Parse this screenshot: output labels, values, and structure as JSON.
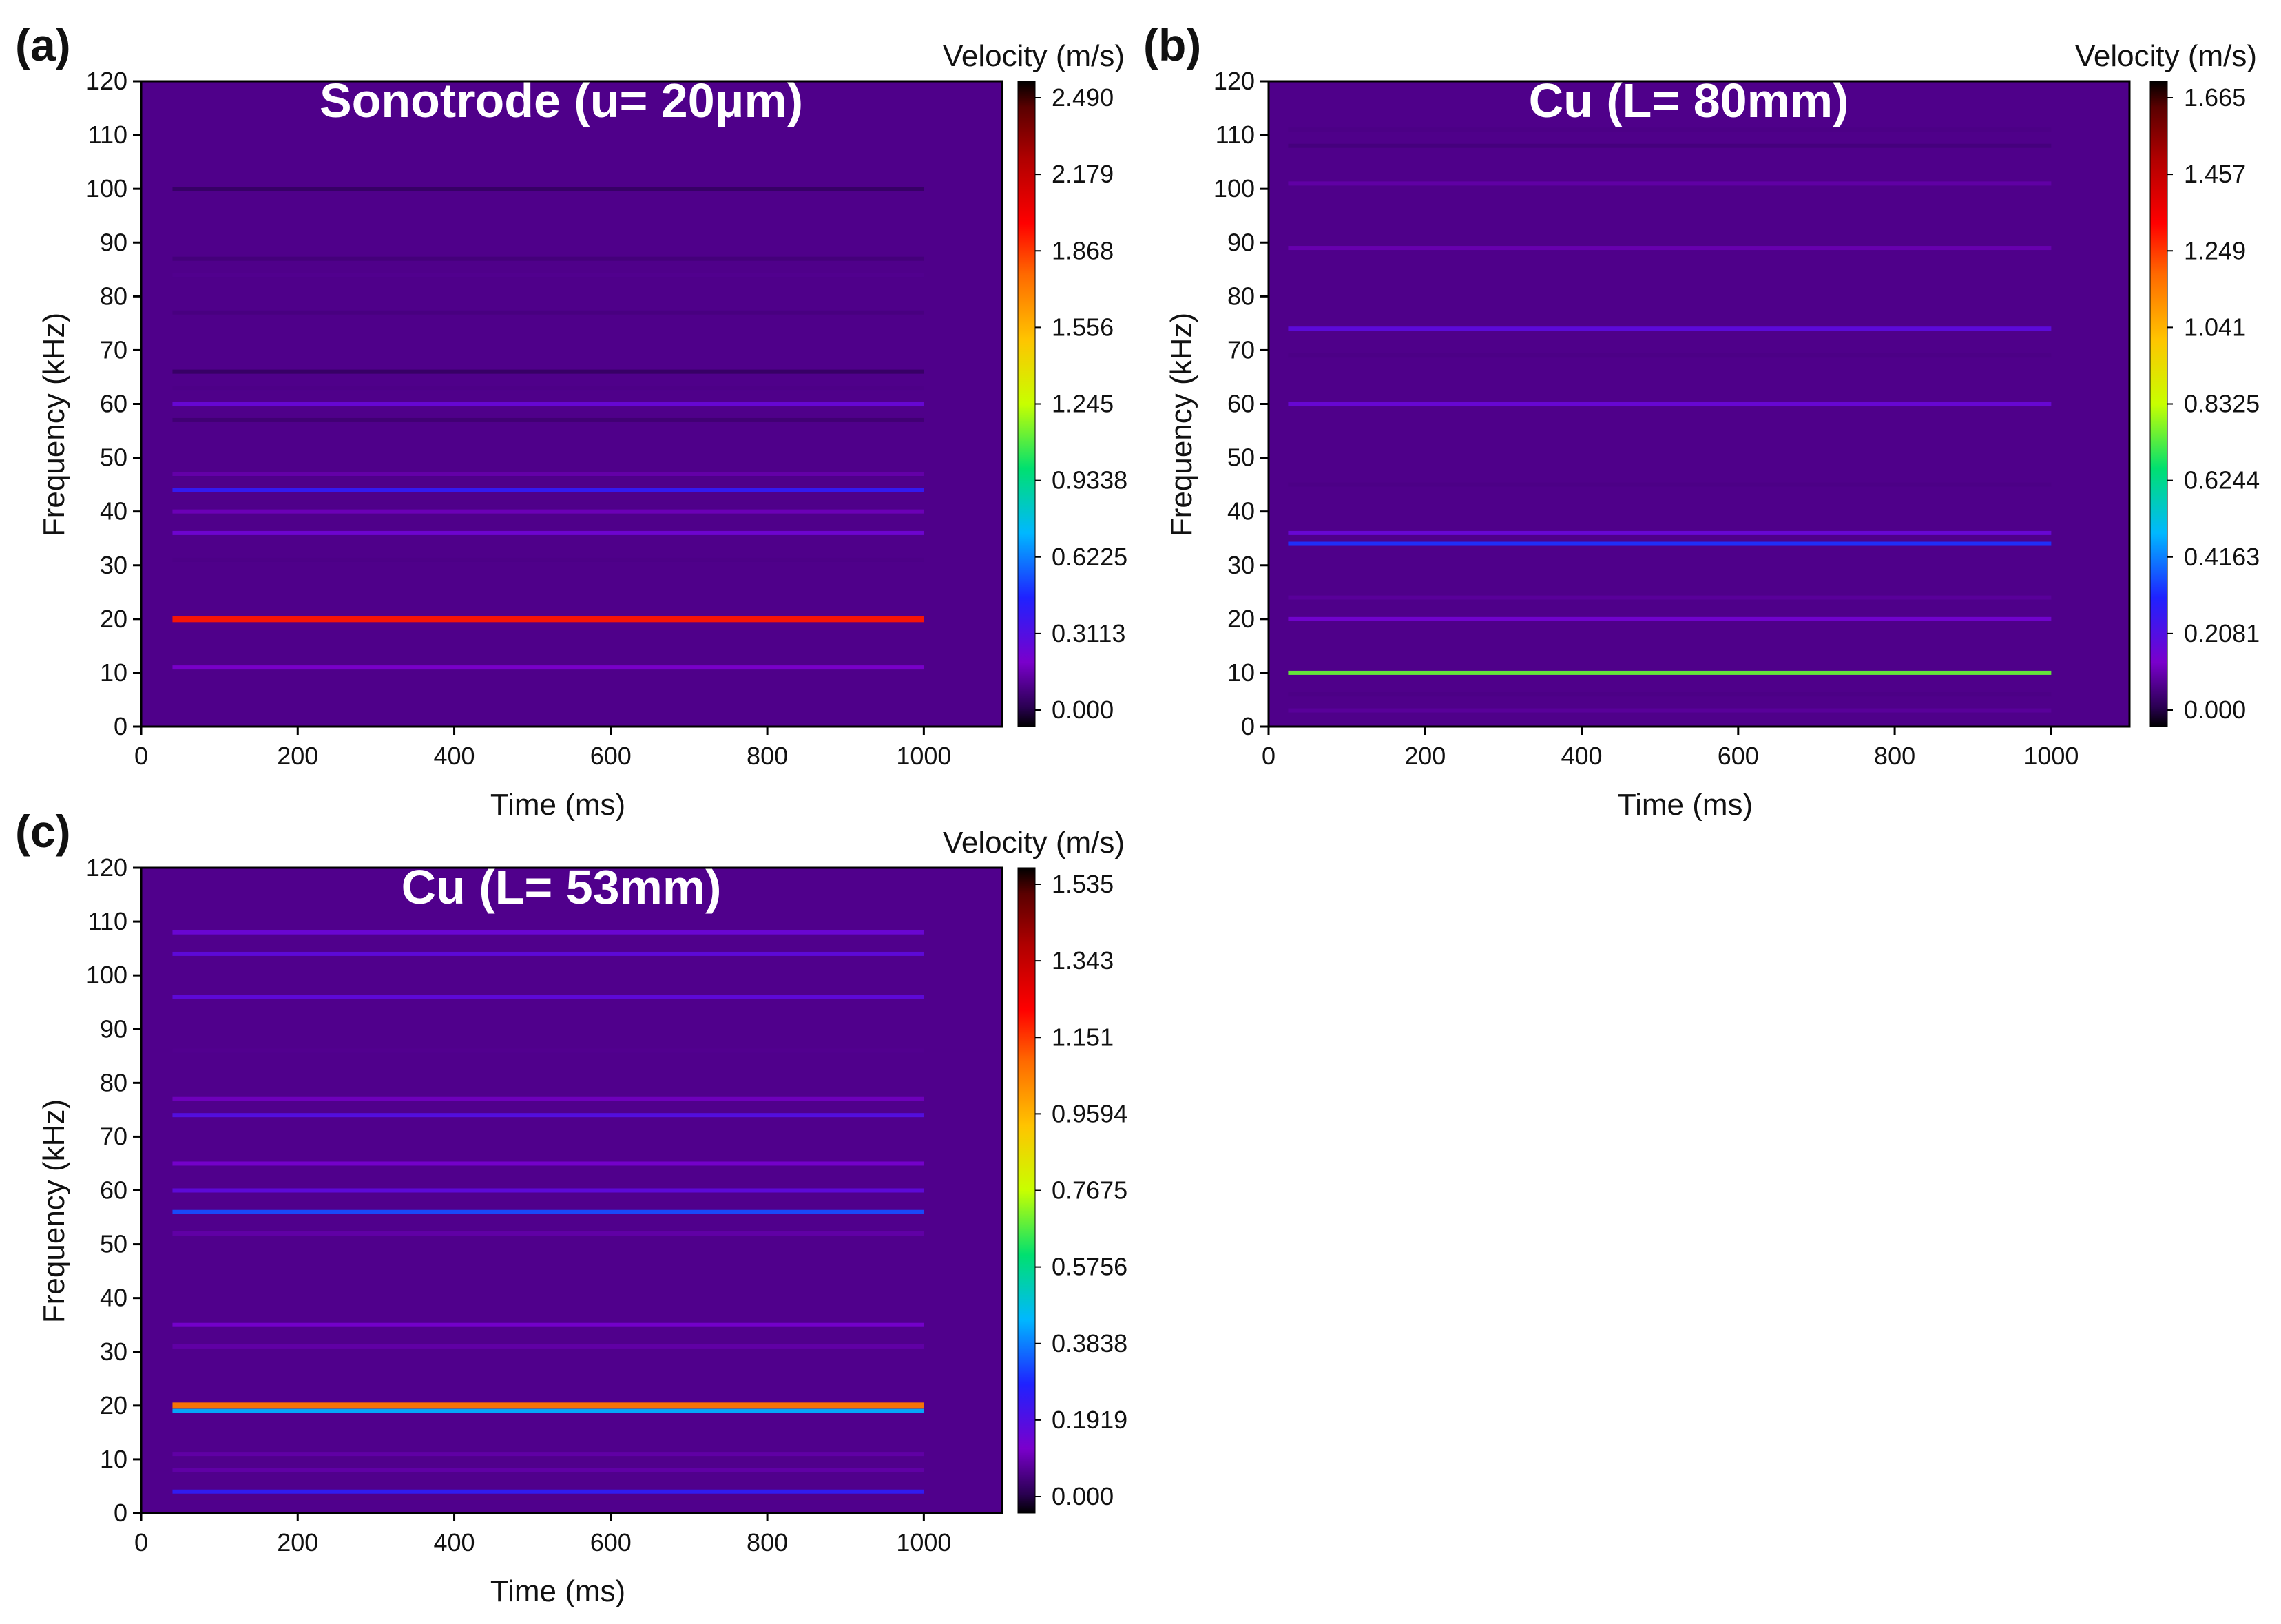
{
  "figure": {
    "panels": [
      {
        "label": "(a)",
        "title": "Sonotrode (u= 20μm)"
      },
      {
        "label": "(b)",
        "title": "Cu (L= 80mm)"
      },
      {
        "label": "(c)",
        "title": "Cu (L= 53mm)"
      }
    ]
  },
  "chart_data": [
    {
      "type": "heatmap",
      "panel_label": "(a)",
      "title": "Sonotrode (u= 20μm)",
      "xlabel": "Time (ms)",
      "ylabel": "Frequency (kHz)",
      "xlim": [
        0,
        1100
      ],
      "ylim": [
        0,
        120
      ],
      "x_ticks": [
        "0",
        "200",
        "400",
        "600",
        "800",
        "1000"
      ],
      "y_ticks": [
        "0",
        "10",
        "20",
        "30",
        "40",
        "50",
        "60",
        "70",
        "80",
        "90",
        "100",
        "110",
        "120"
      ],
      "colorbar": {
        "title": "Velocity (m/s)",
        "min": 0,
        "max": 2.49,
        "tick_labels": [
          "0.000",
          "0.3113",
          "0.6225",
          "0.9338",
          "1.245",
          "1.556",
          "1.868",
          "2.179",
          "2.490"
        ]
      },
      "signal_time_range_ms": [
        40,
        1000
      ],
      "background_level": 0.03,
      "bands": [
        {
          "frequency_khz": 20,
          "level": 1.9
        },
        {
          "frequency_khz": 11,
          "level": 0.25
        },
        {
          "frequency_khz": 31,
          "level": 0.15
        },
        {
          "frequency_khz": 36,
          "level": 0.28
        },
        {
          "frequency_khz": 40,
          "level": 0.22
        },
        {
          "frequency_khz": 44,
          "level": 0.45
        },
        {
          "frequency_khz": 47,
          "level": 0.2
        },
        {
          "frequency_khz": 57,
          "level": 0.12
        },
        {
          "frequency_khz": 60,
          "level": 0.3
        },
        {
          "frequency_khz": 63,
          "level": 0.15
        },
        {
          "frequency_khz": 66,
          "level": 0.1
        },
        {
          "frequency_khz": 77,
          "level": 0.14
        },
        {
          "frequency_khz": 84,
          "level": 0.16
        },
        {
          "frequency_khz": 87,
          "level": 0.13
        },
        {
          "frequency_khz": 100,
          "level": 0.1
        }
      ]
    },
    {
      "type": "heatmap",
      "panel_label": "(b)",
      "title": "Cu (L= 80mm)",
      "xlabel": "Time (ms)",
      "ylabel": "Frequency (kHz)",
      "xlim": [
        0,
        1100
      ],
      "ylim": [
        0,
        120
      ],
      "x_ticks": [
        "0",
        "200",
        "400",
        "600",
        "800",
        "1000"
      ],
      "y_ticks": [
        "0",
        "10",
        "20",
        "30",
        "40",
        "50",
        "60",
        "70",
        "80",
        "90",
        "100",
        "110",
        "120"
      ],
      "colorbar": {
        "title": "Velocity (m/s)",
        "min": 0,
        "max": 1.665,
        "tick_labels": [
          "0.000",
          "0.2081",
          "0.4163",
          "0.6244",
          "0.8325",
          "1.041",
          "1.249",
          "1.457",
          "1.665"
        ]
      },
      "signal_time_range_ms": [
        25,
        1000
      ],
      "background_level": 0.02,
      "bands": [
        {
          "frequency_khz": 10,
          "level": 0.75
        },
        {
          "frequency_khz": 3,
          "level": 0.12
        },
        {
          "frequency_khz": 6,
          "level": 0.1
        },
        {
          "frequency_khz": 20,
          "level": 0.18
        },
        {
          "frequency_khz": 24,
          "level": 0.12
        },
        {
          "frequency_khz": 34,
          "level": 0.35
        },
        {
          "frequency_khz": 36,
          "level": 0.2
        },
        {
          "frequency_khz": 45,
          "level": 0.1
        },
        {
          "frequency_khz": 60,
          "level": 0.2
        },
        {
          "frequency_khz": 69,
          "level": 0.1
        },
        {
          "frequency_khz": 74,
          "level": 0.22
        },
        {
          "frequency_khz": 89,
          "level": 0.14
        },
        {
          "frequency_khz": 101,
          "level": 0.13
        },
        {
          "frequency_khz": 108,
          "level": 0.09
        },
        {
          "frequency_khz": 111,
          "level": 0.1
        }
      ]
    },
    {
      "type": "heatmap",
      "panel_label": "(c)",
      "title": "Cu (L= 53mm)",
      "xlabel": "Time (ms)",
      "ylabel": "Frequency (kHz)",
      "xlim": [
        0,
        1100
      ],
      "ylim": [
        0,
        120
      ],
      "x_ticks": [
        "0",
        "200",
        "400",
        "600",
        "800",
        "1000"
      ],
      "y_ticks": [
        "0",
        "10",
        "20",
        "30",
        "40",
        "50",
        "60",
        "70",
        "80",
        "90",
        "100",
        "110",
        "120"
      ],
      "colorbar": {
        "title": "Velocity (m/s)",
        "min": 0,
        "max": 1.535,
        "tick_labels": [
          "0.000",
          "0.1919",
          "0.3838",
          "0.5756",
          "0.7675",
          "0.9594",
          "1.151",
          "1.343",
          "1.535"
        ]
      },
      "signal_time_range_ms": [
        40,
        1000
      ],
      "background_level": 0.02,
      "bands": [
        {
          "frequency_khz": 20,
          "level": 1.05
        },
        {
          "frequency_khz": 19,
          "level": 0.45
        },
        {
          "frequency_khz": 4,
          "level": 0.28
        },
        {
          "frequency_khz": 8,
          "level": 0.12
        },
        {
          "frequency_khz": 11,
          "level": 0.12
        },
        {
          "frequency_khz": 31,
          "level": 0.12
        },
        {
          "frequency_khz": 35,
          "level": 0.16
        },
        {
          "frequency_khz": 52,
          "level": 0.12
        },
        {
          "frequency_khz": 56,
          "level": 0.35
        },
        {
          "frequency_khz": 60,
          "level": 0.2
        },
        {
          "frequency_khz": 65,
          "level": 0.16
        },
        {
          "frequency_khz": 74,
          "level": 0.22
        },
        {
          "frequency_khz": 77,
          "level": 0.14
        },
        {
          "frequency_khz": 86,
          "level": 0.1
        },
        {
          "frequency_khz": 96,
          "level": 0.2
        },
        {
          "frequency_khz": 104,
          "level": 0.2
        },
        {
          "frequency_khz": 108,
          "level": 0.18
        }
      ]
    }
  ]
}
